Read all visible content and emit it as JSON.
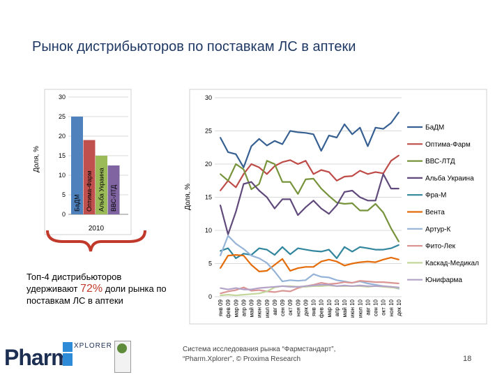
{
  "slide": {
    "title": "Рынок дистрибьюторов по поставкам ЛС в аптеки",
    "callout_part1": "Топ-4 дистрибьюторов удерживают",
    "callout_pct": "72%",
    "callout_part2": "доли рынка по поставкам ЛС в аптеки",
    "logo_main": "Pharm",
    "logo_sub": "XPLORER",
    "source_line1": "Система исследования рынка  “Фармстандарт”,",
    "source_line2": "“Pharm.Xplorer”, © Proxima Research",
    "page_number": "18"
  },
  "chart_data": [
    {
      "type": "bar",
      "ylabel": "Доля, %",
      "xlabel": "",
      "ylim": [
        0,
        30
      ],
      "yticks": [
        "0",
        "5",
        "10",
        "15",
        "20",
        "25",
        "30"
      ],
      "group_label": "2010",
      "categories": [
        "БаДМ",
        "Оптима-Фарм",
        "Альба Украина",
        "ВВС-ЛТД"
      ],
      "values": [
        25,
        19,
        15,
        12.5
      ],
      "colors": [
        "#4f81bd",
        "#c0504d",
        "#9bbb59",
        "#8064a2"
      ]
    },
    {
      "type": "line",
      "ylabel": "Доля, %",
      "ylim": [
        0,
        30
      ],
      "yticks": [
        "0",
        "5",
        "10",
        "15",
        "20",
        "25",
        "30"
      ],
      "x": [
        "янв 09",
        "фев 09",
        "мар 09",
        "апр 09",
        "май 09",
        "июн 09",
        "июл 09",
        "авг 09",
        "сен 09",
        "окт 09",
        "ноя 09",
        "дек 09",
        "янв 10",
        "фев 10",
        "мар 10",
        "апр 10",
        "май 10",
        "июн 10",
        "июл 10",
        "авг 10",
        "сен 10",
        "окт 10",
        "ноя 10",
        "дек 10"
      ],
      "series": [
        {
          "name": "БаДМ",
          "color": "#376092",
          "values": [
            24,
            21.8,
            21.5,
            19.5,
            22.7,
            23.8,
            22.8,
            23.5,
            23,
            25,
            24.8,
            24.7,
            24.5,
            22,
            24.3,
            24,
            26,
            24.5,
            25.5,
            22.7,
            25.5,
            25.3,
            26.2,
            27.8
          ]
        },
        {
          "name": "Оптима-Фарм",
          "color": "#be4b48",
          "values": [
            16,
            17.5,
            16.5,
            18.5,
            20,
            19.5,
            18.5,
            19.7,
            20.3,
            20.6,
            20,
            20.5,
            18.5,
            19.1,
            18.8,
            17.5,
            18.1,
            18.2,
            19,
            18.5,
            18.8,
            18.6,
            20.5,
            21.3
          ]
        },
        {
          "name": "ВВС-ЛТД",
          "color": "#77933c",
          "values": [
            18.5,
            17.5,
            20,
            19.2,
            16.2,
            17,
            20.5,
            20,
            17.3,
            17.3,
            15.5,
            17.7,
            17.8,
            16.3,
            15.2,
            14.2,
            14,
            14.1,
            13,
            13,
            14,
            12.7,
            10.3,
            8.3
          ]
        },
        {
          "name": "Альба Украина",
          "color": "#604a7b",
          "values": [
            13.8,
            9.4,
            12.8,
            17,
            17.3,
            16,
            15,
            13.3,
            14.7,
            14.7,
            12.3,
            13.5,
            14.5,
            13.3,
            12.5,
            13.8,
            15.8,
            16,
            15,
            14.5,
            14.5,
            18.5,
            16.3,
            16.3
          ]
        },
        {
          "name": "Фра-М",
          "color": "#31859c",
          "values": [
            6.9,
            7.3,
            5.8,
            6.5,
            6.3,
            7.3,
            7.1,
            6.3,
            7.5,
            6.4,
            7.3,
            7.1,
            6.9,
            6.8,
            7.1,
            5.8,
            7.5,
            6.8,
            7.5,
            7.3,
            7.1,
            7.1,
            7.3,
            7.8
          ]
        },
        {
          "name": "Вента",
          "color": "#e46c0a",
          "values": [
            4.3,
            6.2,
            6.3,
            6.2,
            4.8,
            3.8,
            3.9,
            4.8,
            5.7,
            3.9,
            4.3,
            4.5,
            4.5,
            5.3,
            5.6,
            5.3,
            4.7,
            5,
            5.2,
            5.3,
            5.2,
            5.6,
            5.9,
            5.6
          ]
        },
        {
          "name": "Артур-К",
          "color": "#95b3d7",
          "values": [
            6.2,
            9.2,
            8,
            7.2,
            6.2,
            5.8,
            5.1,
            3.8,
            2.3,
            2.5,
            2.4,
            2.5,
            3.4,
            3,
            2.9,
            2.5,
            2.3,
            2.1,
            2.3,
            2,
            1.8,
            1.6,
            1.5,
            1.2
          ]
        },
        {
          "name": "Фито-Лек",
          "color": "#d99694",
          "values": [
            0.5,
            0.8,
            1,
            1.4,
            0.9,
            1,
            0.8,
            0.7,
            0.9,
            0.8,
            1.3,
            1.6,
            1.8,
            2.1,
            1.9,
            2,
            2.2,
            2.1,
            2.4,
            2.3,
            2.2,
            2.2,
            2.1,
            2
          ]
        },
        {
          "name": "Каскад-Медикал",
          "color": "#c3d69b",
          "values": [
            0.2,
            0.3,
            0.2,
            0.3,
            0.4,
            0.5,
            0.8,
            1.4,
            1.6,
            1.6,
            1.5,
            1.5,
            1.6,
            1.6,
            1.7,
            1.6,
            1.6,
            1.6,
            1.6,
            1.5,
            1.6,
            1.5,
            1.4,
            1.3
          ]
        },
        {
          "name": "Юнифарма",
          "color": "#b3a2c7",
          "values": [
            1.3,
            1.1,
            1.3,
            1.1,
            1.1,
            1.3,
            1.4,
            1.5,
            1.6,
            1.5,
            1.5,
            1.6,
            1.7,
            1.8,
            1.8,
            1.6,
            1.7,
            1.6,
            1.7,
            1.6,
            1.6,
            1.6,
            1.5,
            1.4
          ]
        }
      ]
    }
  ]
}
